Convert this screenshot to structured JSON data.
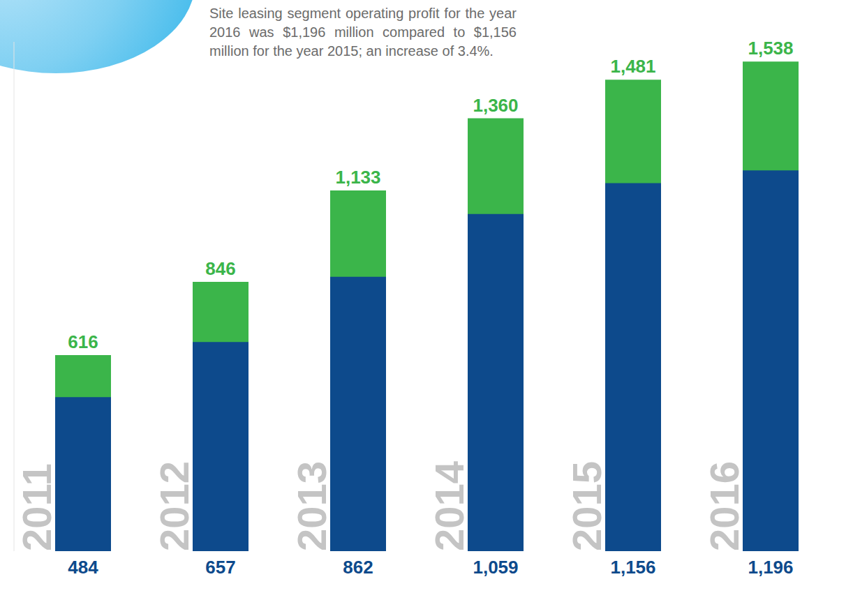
{
  "chart_data": {
    "type": "bar",
    "annotation": "Site leasing segment operating profit for the year 2016 was $1,196 million compared to $1,156 million for the year 2015; an increase of 3.4%.",
    "categories": [
      "2011",
      "2012",
      "2013",
      "2014",
      "2015",
      "2016"
    ],
    "series": [
      {
        "color": "#3bb54a",
        "values": [
          616,
          846,
          1133,
          1360,
          1481,
          1538
        ],
        "value_labels": [
          "616",
          "846",
          "1,133",
          "1,360",
          "1,481",
          "1,538"
        ]
      },
      {
        "color": "#0d4a8c",
        "values": [
          484,
          657,
          862,
          1059,
          1156,
          1196
        ],
        "value_labels": [
          "484",
          "657",
          "862",
          "1,059",
          "1,156",
          "1,196"
        ]
      }
    ],
    "ylim": [
      0,
      1600
    ],
    "yticks": [
      0,
      1600
    ],
    "tick_labels": "x",
    "data_labels": true
  }
}
